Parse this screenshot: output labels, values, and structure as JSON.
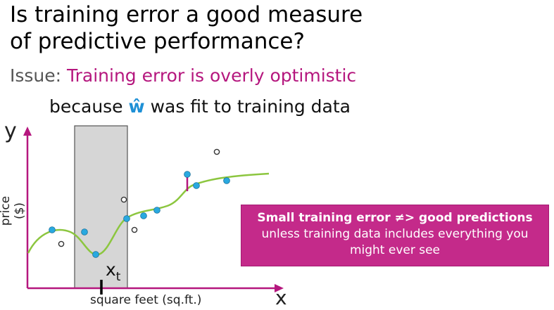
{
  "title": {
    "line1": "Is training error a good measure",
    "line2": "of predictive performance?"
  },
  "issue": {
    "prefix": "Issue: ",
    "highlight": "Training error is overly optimistic"
  },
  "because": {
    "before": "because ",
    "w_hat": "ŵ",
    "after": " was fit to training data"
  },
  "axes": {
    "y_symbol": "y",
    "x_symbol": "x",
    "y_label": "price ($)",
    "x_label": "square feet (sq.ft.)"
  },
  "marker": {
    "name": "x",
    "subscript": "t"
  },
  "callout": {
    "strong": "Small training error ≠> good predictions",
    "line2": "unless training data includes everything you",
    "line3": "might ever see"
  },
  "colors": {
    "accent": "#b5177e",
    "callout_bg": "#c42a8a",
    "fit_curve": "#8cc63f",
    "train_point": "#29a9e0",
    "axis": "#b5177e"
  }
}
